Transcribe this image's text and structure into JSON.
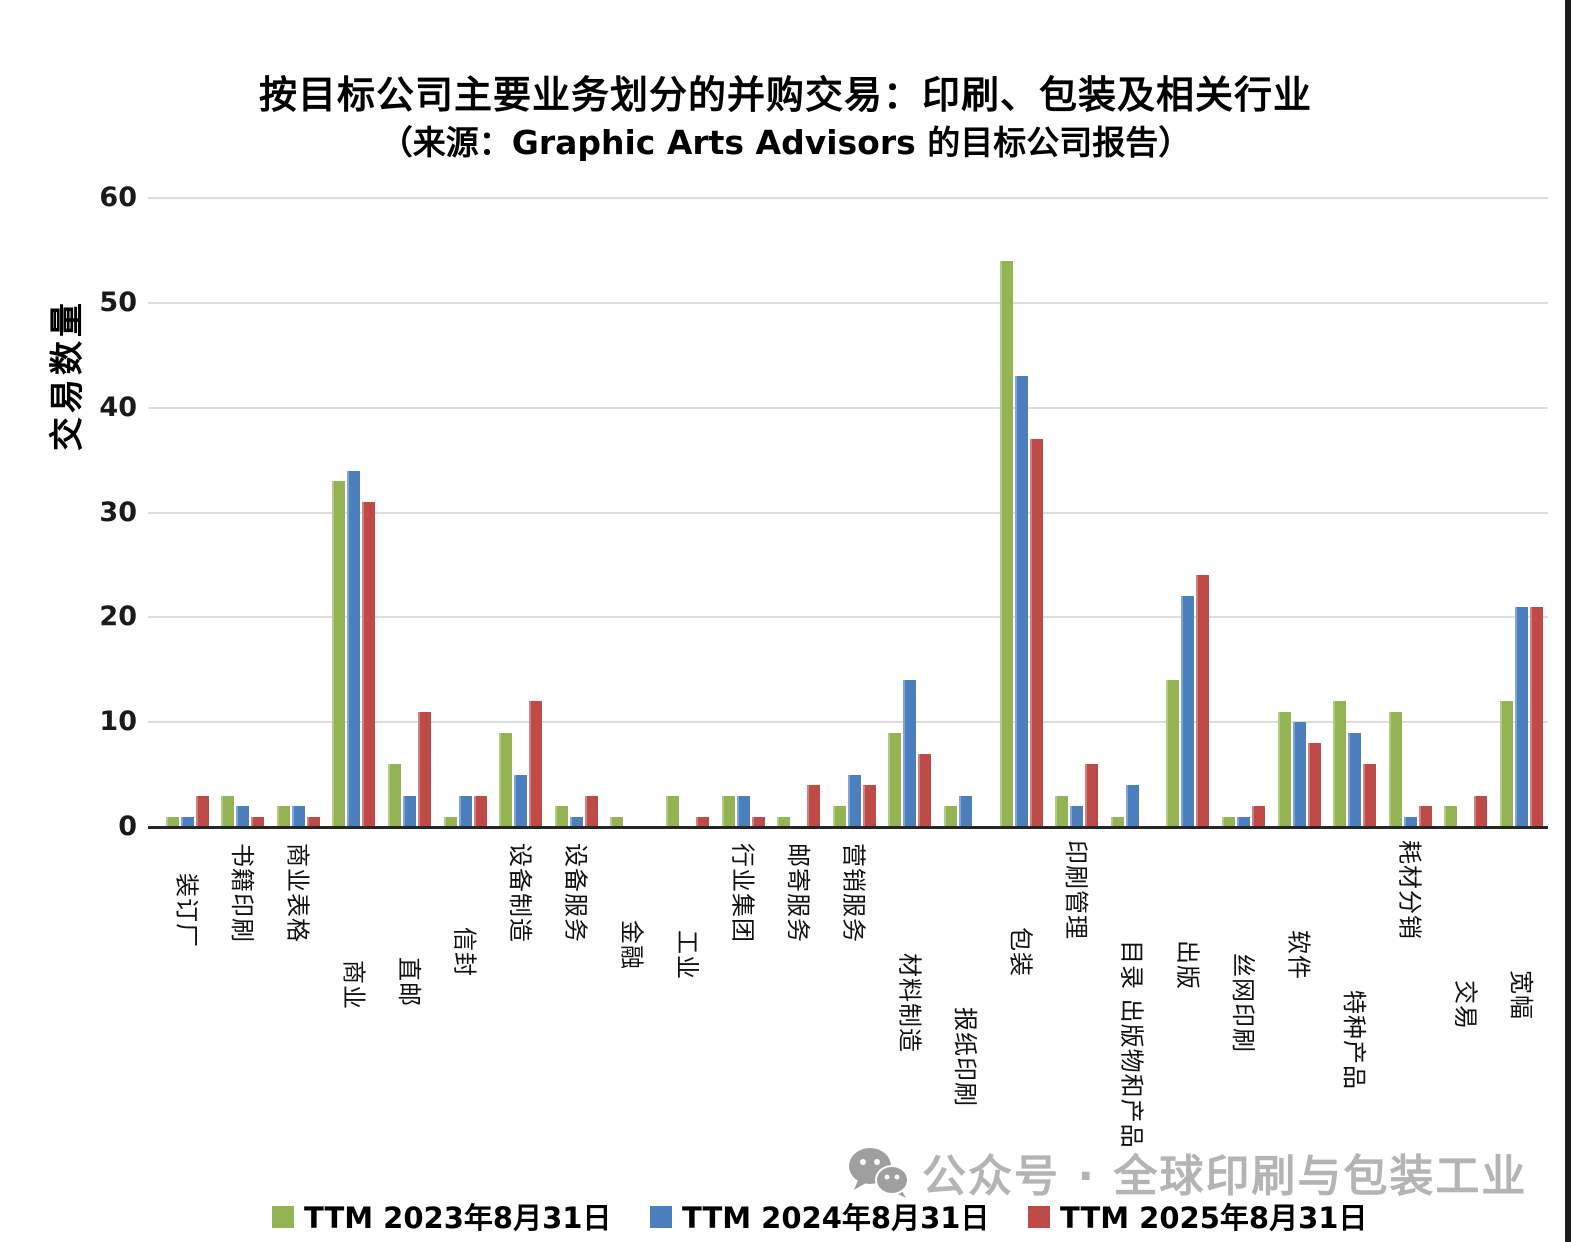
{
  "title": "按目标公司主要业务划分的并购交易：印刷、包装及相关行业",
  "subtitle": "（来源：Graphic Arts Advisors 的目标公司报告）",
  "watermark": {
    "icon": "wechat-icon",
    "text": "公众号 · 全球印刷与包装工业"
  },
  "chart_data": {
    "type": "bar",
    "title": "按目标公司主要业务划分的并购交易：印刷、包装及相关行业",
    "subtitle": "（来源：Graphic Arts Advisors 的目标公司报告）",
    "ylabel": "交易数量",
    "xlabel": "",
    "ylim": [
      0,
      60
    ],
    "yticks": [
      0,
      10,
      20,
      30,
      40,
      50,
      60
    ],
    "grid": true,
    "legend_position": "bottom",
    "categories": [
      "装订厂",
      "书籍印刷",
      "商业表格",
      "商业",
      "直邮",
      "信封",
      "设备制造",
      "设备服务",
      "金融",
      "工业",
      "行业集团",
      "邮寄服务",
      "营销服务",
      "材料制造",
      "报纸印刷",
      "包装",
      "印刷管理",
      "目录 出版物和产品",
      "出版",
      "丝网印刷",
      "软件",
      "特种产品",
      "耗材分销",
      "交易",
      "宽幅"
    ],
    "series": [
      {
        "name": "TTM 2023年8月31日",
        "color": "#94B454",
        "values": [
          1,
          3,
          2,
          33,
          6,
          1,
          9,
          2,
          1,
          3,
          3,
          1,
          2,
          9,
          2,
          54,
          3,
          1,
          14,
          1,
          11,
          12,
          11,
          2,
          12
        ]
      },
      {
        "name": "TTM 2024年8月31日",
        "color": "#4C7FBE",
        "values": [
          1,
          2,
          2,
          34,
          3,
          3,
          5,
          1,
          0,
          0,
          3,
          0,
          5,
          14,
          3,
          43,
          2,
          4,
          22,
          1,
          10,
          9,
          1,
          0,
          21
        ]
      },
      {
        "name": "TTM 2025年8月31日",
        "color": "#BE4B48",
        "values": [
          3,
          1,
          1,
          31,
          11,
          3,
          12,
          3,
          0,
          1,
          1,
          4,
          4,
          7,
          0,
          37,
          6,
          0,
          24,
          2,
          8,
          6,
          2,
          3,
          21
        ]
      }
    ]
  }
}
